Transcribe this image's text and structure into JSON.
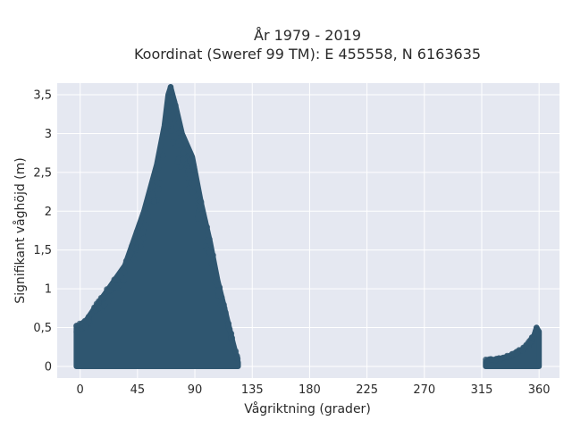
{
  "chart_data": {
    "type": "scatter",
    "title": "År 1979 - 2019",
    "subtitle": "Koordinat (Sweref 99 TM): E 455558, N 6163635",
    "xlabel": "Vågriktning (grader)",
    "ylabel": "Signifikant våghöjd (m)",
    "xlim": [
      -18,
      376
    ],
    "ylim": [
      -0.15,
      3.65
    ],
    "x_ticks": [
      0,
      45,
      90,
      135,
      180,
      225,
      270,
      315,
      360
    ],
    "x_tick_labels": [
      "0",
      "45",
      "90",
      "135",
      "180",
      "225",
      "270",
      "315",
      "360"
    ],
    "y_ticks": [
      0,
      0.5,
      1,
      1.5,
      2,
      2.5,
      3,
      3.5
    ],
    "y_tick_labels": [
      "0",
      "0,5",
      "1",
      "1,5",
      "2",
      "2,5",
      "3",
      "3,5"
    ],
    "grid": true,
    "point_color": "#2f5670",
    "plot_background": "#e5e8f1",
    "clusters": [
      {
        "envelope": [
          [
            -3,
            0.0
          ],
          [
            -3,
            0.5
          ],
          [
            5,
            0.6
          ],
          [
            10,
            0.72
          ],
          [
            20,
            0.95
          ],
          [
            35,
            1.3
          ],
          [
            50,
            2.0
          ],
          [
            60,
            2.6
          ],
          [
            66,
            3.1
          ],
          [
            69,
            3.5
          ],
          [
            71,
            3.6
          ],
          [
            75,
            3.35
          ],
          [
            80,
            3.0
          ],
          [
            88,
            2.7
          ],
          [
            95,
            2.1
          ],
          [
            102,
            1.6
          ],
          [
            108,
            1.1
          ],
          [
            114,
            0.7
          ],
          [
            120,
            0.3
          ],
          [
            124,
            0.05
          ],
          [
            124,
            0.0
          ]
        ],
        "peak": [
          71,
          3.6
        ],
        "x_range": [
          -3,
          124
        ],
        "y_range": [
          0,
          3.6
        ]
      },
      {
        "envelope": [
          [
            318,
            0.0
          ],
          [
            318,
            0.06
          ],
          [
            330,
            0.08
          ],
          [
            340,
            0.14
          ],
          [
            350,
            0.25
          ],
          [
            356,
            0.4
          ],
          [
            358,
            0.5
          ],
          [
            360,
            0.45
          ],
          [
            360,
            0.0
          ]
        ],
        "peak": [
          358,
          0.5
        ],
        "x_range": [
          318,
          360
        ],
        "y_range": [
          0,
          0.5
        ]
      }
    ]
  }
}
